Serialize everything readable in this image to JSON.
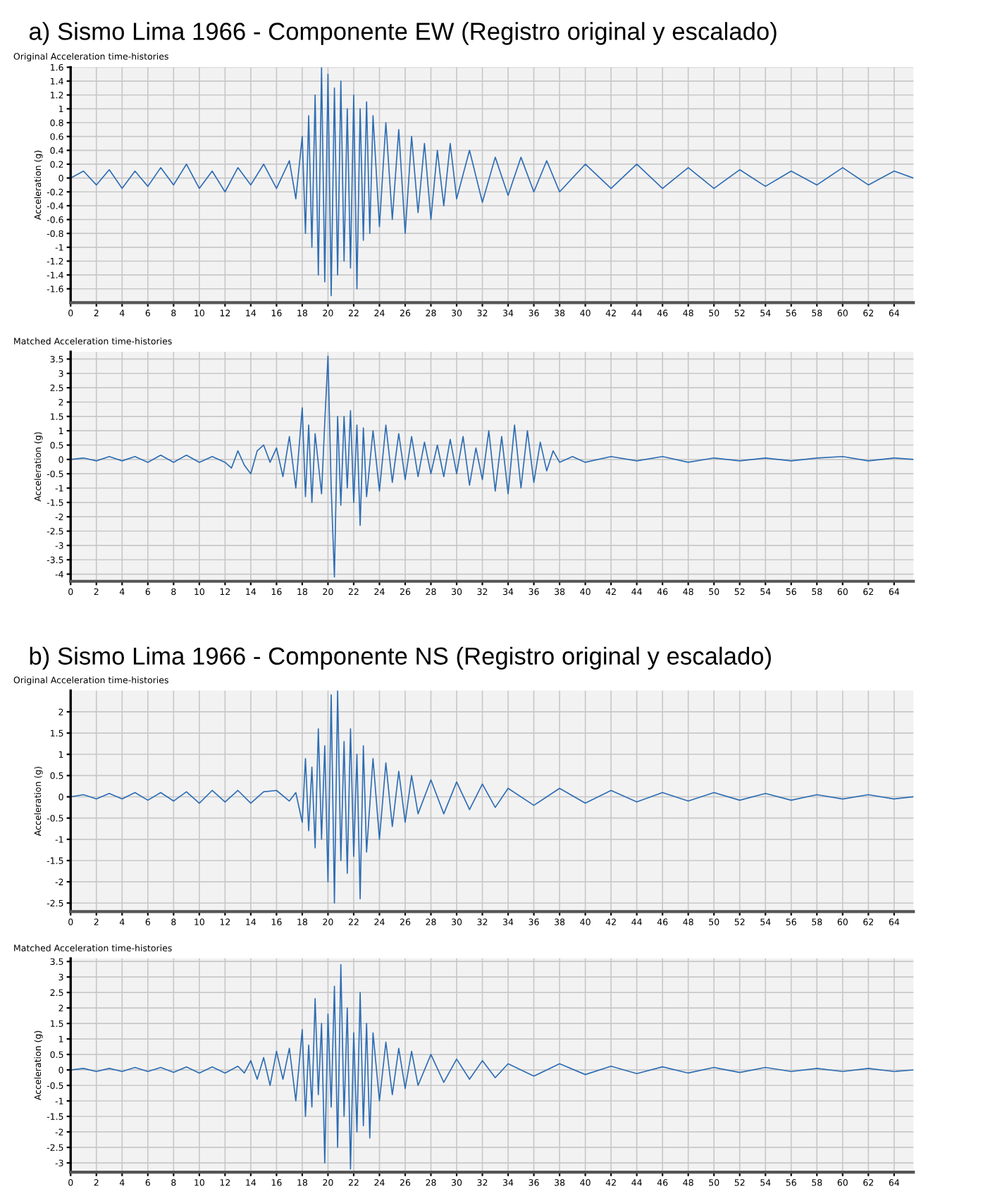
{
  "chart_data": [
    {
      "type": "line",
      "title": "a) Sismo Lima 1966 - Componente EW (Registro original y escalado)",
      "subtitle": "Original Acceleration time-histories",
      "ylabel": "Acceleration (g)",
      "color": "#2e6db4",
      "grid": true,
      "xlim": [
        0,
        65.5
      ],
      "xticks": [
        0,
        2,
        4,
        6,
        8,
        10,
        12,
        14,
        16,
        18,
        20,
        22,
        24,
        26,
        28,
        30,
        32,
        34,
        36,
        38,
        40,
        42,
        44,
        46,
        48,
        50,
        52,
        54,
        56,
        58,
        60,
        62,
        64
      ],
      "ylim": [
        -1.8,
        1.6
      ],
      "yticks": [
        -1.6,
        -1.4,
        -1.2,
        -1,
        -0.8,
        -0.6,
        -0.4,
        -0.2,
        0,
        0.2,
        0.4,
        0.6,
        0.8,
        1,
        1.2,
        1.4,
        1.6
      ],
      "x": [
        0,
        1,
        2,
        3,
        4,
        5,
        6,
        7,
        8,
        9,
        10,
        11,
        12,
        13,
        14,
        15,
        16,
        17,
        17.5,
        18,
        18.25,
        18.5,
        18.75,
        19,
        19.25,
        19.5,
        19.75,
        20,
        20.25,
        20.5,
        20.75,
        21,
        21.25,
        21.5,
        21.75,
        22,
        22.25,
        22.5,
        22.75,
        23,
        23.25,
        23.5,
        24,
        24.5,
        25,
        25.5,
        26,
        26.5,
        27,
        27.5,
        28,
        28.5,
        29,
        29.5,
        30,
        31,
        32,
        33,
        34,
        35,
        36,
        37,
        38,
        40,
        42,
        44,
        46,
        48,
        50,
        52,
        54,
        56,
        58,
        60,
        62,
        64,
        65.5
      ],
      "values": [
        0,
        0.1,
        -0.1,
        0.12,
        -0.15,
        0.1,
        -0.12,
        0.15,
        -0.1,
        0.2,
        -0.15,
        0.1,
        -0.2,
        0.15,
        -0.1,
        0.2,
        -0.15,
        0.25,
        -0.3,
        0.6,
        -0.8,
        0.9,
        -1.0,
        1.2,
        -1.4,
        1.6,
        -1.5,
        1.5,
        -1.7,
        1.3,
        -1.4,
        1.4,
        -1.2,
        1.0,
        -1.3,
        1.2,
        -1.6,
        1.0,
        -0.9,
        1.1,
        -0.8,
        0.9,
        -0.7,
        0.8,
        -0.6,
        0.7,
        -0.8,
        0.6,
        -0.5,
        0.5,
        -0.6,
        0.4,
        -0.4,
        0.5,
        -0.3,
        0.4,
        -0.35,
        0.3,
        -0.25,
        0.3,
        -0.2,
        0.25,
        -0.2,
        0.2,
        -0.15,
        0.2,
        -0.15,
        0.15,
        -0.15,
        0.12,
        -0.12,
        0.1,
        -0.1,
        0.15,
        -0.1,
        0.1,
        0
      ]
    },
    {
      "type": "line",
      "subtitle": "Matched Acceleration time-histories",
      "ylabel": "Acceleration (g)",
      "color": "#2e6db4",
      "grid": true,
      "xlim": [
        0,
        65.5
      ],
      "xticks": [
        0,
        2,
        4,
        6,
        8,
        10,
        12,
        14,
        16,
        18,
        20,
        22,
        24,
        26,
        28,
        30,
        32,
        34,
        36,
        38,
        40,
        42,
        44,
        46,
        48,
        50,
        52,
        54,
        56,
        58,
        60,
        62,
        64
      ],
      "ylim": [
        -4.25,
        3.75
      ],
      "yticks": [
        -4,
        -3.5,
        -3,
        -2.5,
        -2,
        -1.5,
        -1,
        -0.5,
        0,
        0.5,
        1,
        1.5,
        2,
        2.5,
        3,
        3.5
      ],
      "x": [
        0,
        1,
        2,
        3,
        4,
        5,
        6,
        7,
        8,
        9,
        10,
        11,
        12,
        12.5,
        13,
        13.5,
        14,
        14.5,
        15,
        15.5,
        16,
        16.5,
        17,
        17.5,
        18,
        18.25,
        18.5,
        18.75,
        19,
        19.5,
        19.75,
        20,
        20.25,
        20.5,
        20.75,
        21,
        21.25,
        21.5,
        21.75,
        22,
        22.25,
        22.5,
        22.75,
        23,
        23.5,
        24,
        24.5,
        25,
        25.5,
        26,
        26.5,
        27,
        27.5,
        28,
        28.5,
        29,
        29.5,
        30,
        30.5,
        31,
        31.5,
        32,
        32.5,
        33,
        33.5,
        34,
        34.5,
        35,
        35.5,
        36,
        36.5,
        37,
        37.5,
        38,
        39,
        40,
        42,
        44,
        46,
        48,
        50,
        52,
        54,
        56,
        58,
        60,
        62,
        64,
        65.5
      ],
      "values": [
        0,
        0.05,
        -0.05,
        0.1,
        -0.05,
        0.1,
        -0.1,
        0.15,
        -0.1,
        0.15,
        -0.1,
        0.1,
        -0.1,
        -0.3,
        0.3,
        -0.2,
        -0.5,
        0.3,
        0.5,
        -0.1,
        0.4,
        -0.6,
        0.8,
        -1.0,
        1.8,
        -1.3,
        1.2,
        -1.5,
        0.9,
        -1.2,
        1.3,
        3.6,
        -1.0,
        -4.1,
        1.5,
        -1.6,
        1.5,
        -1.0,
        1.7,
        -1.5,
        1.2,
        -2.3,
        1.1,
        -1.3,
        1.0,
        -1.1,
        1.2,
        -0.8,
        0.9,
        -0.7,
        0.8,
        -0.6,
        0.6,
        -0.5,
        0.5,
        -0.6,
        0.7,
        -0.5,
        0.8,
        -0.9,
        0.4,
        -0.7,
        1.0,
        -1.1,
        0.8,
        -1.2,
        1.2,
        -1.0,
        1.0,
        -0.8,
        0.6,
        -0.4,
        0.3,
        -0.1,
        0.1,
        -0.1,
        0.1,
        -0.05,
        0.1,
        -0.1,
        0.05,
        -0.05,
        0.05,
        -0.05,
        0.05,
        0.1,
        -0.05,
        0.05,
        0
      ]
    },
    {
      "type": "line",
      "title": "b) Sismo Lima 1966 - Componente NS (Registro original y escalado)",
      "subtitle": "Original Acceleration time-histories",
      "ylabel": "Acceleration (g)",
      "color": "#2e6db4",
      "grid": true,
      "xlim": [
        0,
        65.5
      ],
      "xticks": [
        0,
        2,
        4,
        6,
        8,
        10,
        12,
        14,
        16,
        18,
        20,
        22,
        24,
        26,
        28,
        30,
        32,
        34,
        36,
        38,
        40,
        42,
        44,
        46,
        48,
        50,
        52,
        54,
        56,
        58,
        60,
        62,
        64
      ],
      "ylim": [
        -2.7,
        2.5
      ],
      "yticks": [
        -2.5,
        -2,
        -1.5,
        -1,
        -0.5,
        0,
        0.5,
        1,
        1.5,
        2
      ],
      "x": [
        0,
        1,
        2,
        3,
        4,
        5,
        6,
        7,
        8,
        9,
        10,
        11,
        12,
        13,
        14,
        15,
        16,
        17,
        17.5,
        18,
        18.25,
        18.5,
        18.75,
        19,
        19.25,
        19.5,
        19.75,
        20,
        20.25,
        20.5,
        20.75,
        21,
        21.25,
        21.5,
        21.75,
        22,
        22.25,
        22.5,
        22.75,
        23,
        23.5,
        24,
        24.5,
        25,
        25.5,
        26,
        26.5,
        27,
        28,
        29,
        30,
        31,
        32,
        33,
        34,
        36,
        38,
        40,
        42,
        44,
        46,
        48,
        50,
        52,
        54,
        56,
        58,
        60,
        62,
        64,
        65.5
      ],
      "values": [
        0,
        0.05,
        -0.05,
        0.08,
        -0.05,
        0.1,
        -0.08,
        0.1,
        -0.1,
        0.12,
        -0.15,
        0.15,
        -0.12,
        0.15,
        -0.15,
        0.12,
        0.15,
        -0.1,
        0.1,
        -0.6,
        0.9,
        -0.8,
        0.7,
        -1.2,
        1.6,
        -1.0,
        1.2,
        -2.0,
        2.4,
        -2.5,
        2.5,
        -1.5,
        1.3,
        -1.8,
        1.6,
        -1.4,
        1.0,
        -2.4,
        1.2,
        -1.3,
        0.9,
        -1.0,
        0.8,
        -0.7,
        0.6,
        -0.6,
        0.5,
        -0.4,
        0.4,
        -0.4,
        0.35,
        -0.3,
        0.3,
        -0.25,
        0.2,
        -0.2,
        0.2,
        -0.15,
        0.15,
        -0.12,
        0.1,
        -0.1,
        0.1,
        -0.08,
        0.08,
        -0.08,
        0.05,
        -0.05,
        0.05,
        -0.05,
        0
      ]
    },
    {
      "type": "line",
      "subtitle": "Matched Acceleration time-histories",
      "ylabel": "Acceleration (g)",
      "color": "#2e6db4",
      "grid": true,
      "xlim": [
        0,
        65.5
      ],
      "xticks": [
        0,
        2,
        4,
        6,
        8,
        10,
        12,
        14,
        16,
        18,
        20,
        22,
        24,
        26,
        28,
        30,
        32,
        34,
        36,
        38,
        40,
        42,
        44,
        46,
        48,
        50,
        52,
        54,
        56,
        58,
        60,
        62,
        64
      ],
      "ylim": [
        -3.3,
        3.6
      ],
      "yticks": [
        -3,
        -2.5,
        -2,
        -1.5,
        -1,
        -0.5,
        0,
        0.5,
        1,
        1.5,
        2,
        2.5,
        3,
        3.5
      ],
      "x": [
        0,
        1,
        2,
        3,
        4,
        5,
        6,
        7,
        8,
        9,
        10,
        11,
        12,
        13,
        13.5,
        14,
        14.5,
        15,
        15.5,
        16,
        16.5,
        17,
        17.5,
        18,
        18.25,
        18.5,
        18.75,
        19,
        19.25,
        19.5,
        19.75,
        20,
        20.25,
        20.5,
        20.75,
        21,
        21.25,
        21.5,
        21.75,
        22,
        22.25,
        22.5,
        22.75,
        23,
        23.25,
        23.5,
        24,
        24.5,
        25,
        25.5,
        26,
        26.5,
        27,
        28,
        29,
        30,
        31,
        32,
        33,
        34,
        36,
        38,
        40,
        42,
        44,
        46,
        48,
        50,
        52,
        54,
        56,
        58,
        60,
        62,
        64,
        65.5
      ],
      "values": [
        0,
        0.05,
        -0.05,
        0.05,
        -0.05,
        0.08,
        -0.05,
        0.08,
        -0.08,
        0.1,
        -0.1,
        0.1,
        -0.1,
        0.12,
        -0.1,
        0.3,
        -0.3,
        0.4,
        -0.5,
        0.6,
        -0.3,
        0.7,
        -1.0,
        1.3,
        -1.5,
        0.8,
        -1.2,
        2.3,
        -0.8,
        1.5,
        -3.0,
        1.8,
        -1.2,
        2.7,
        -2.5,
        3.4,
        -1.5,
        2.0,
        -3.2,
        1.2,
        -2.0,
        2.5,
        -1.8,
        1.5,
        -2.2,
        1.2,
        -1.0,
        0.9,
        -0.8,
        0.7,
        -0.6,
        0.6,
        -0.5,
        0.5,
        -0.4,
        0.35,
        -0.3,
        0.3,
        -0.25,
        0.2,
        -0.2,
        0.2,
        -0.15,
        0.12,
        -0.12,
        0.1,
        -0.1,
        0.08,
        -0.08,
        0.08,
        -0.05,
        0.05,
        -0.05,
        0.05,
        -0.05,
        0
      ]
    }
  ]
}
